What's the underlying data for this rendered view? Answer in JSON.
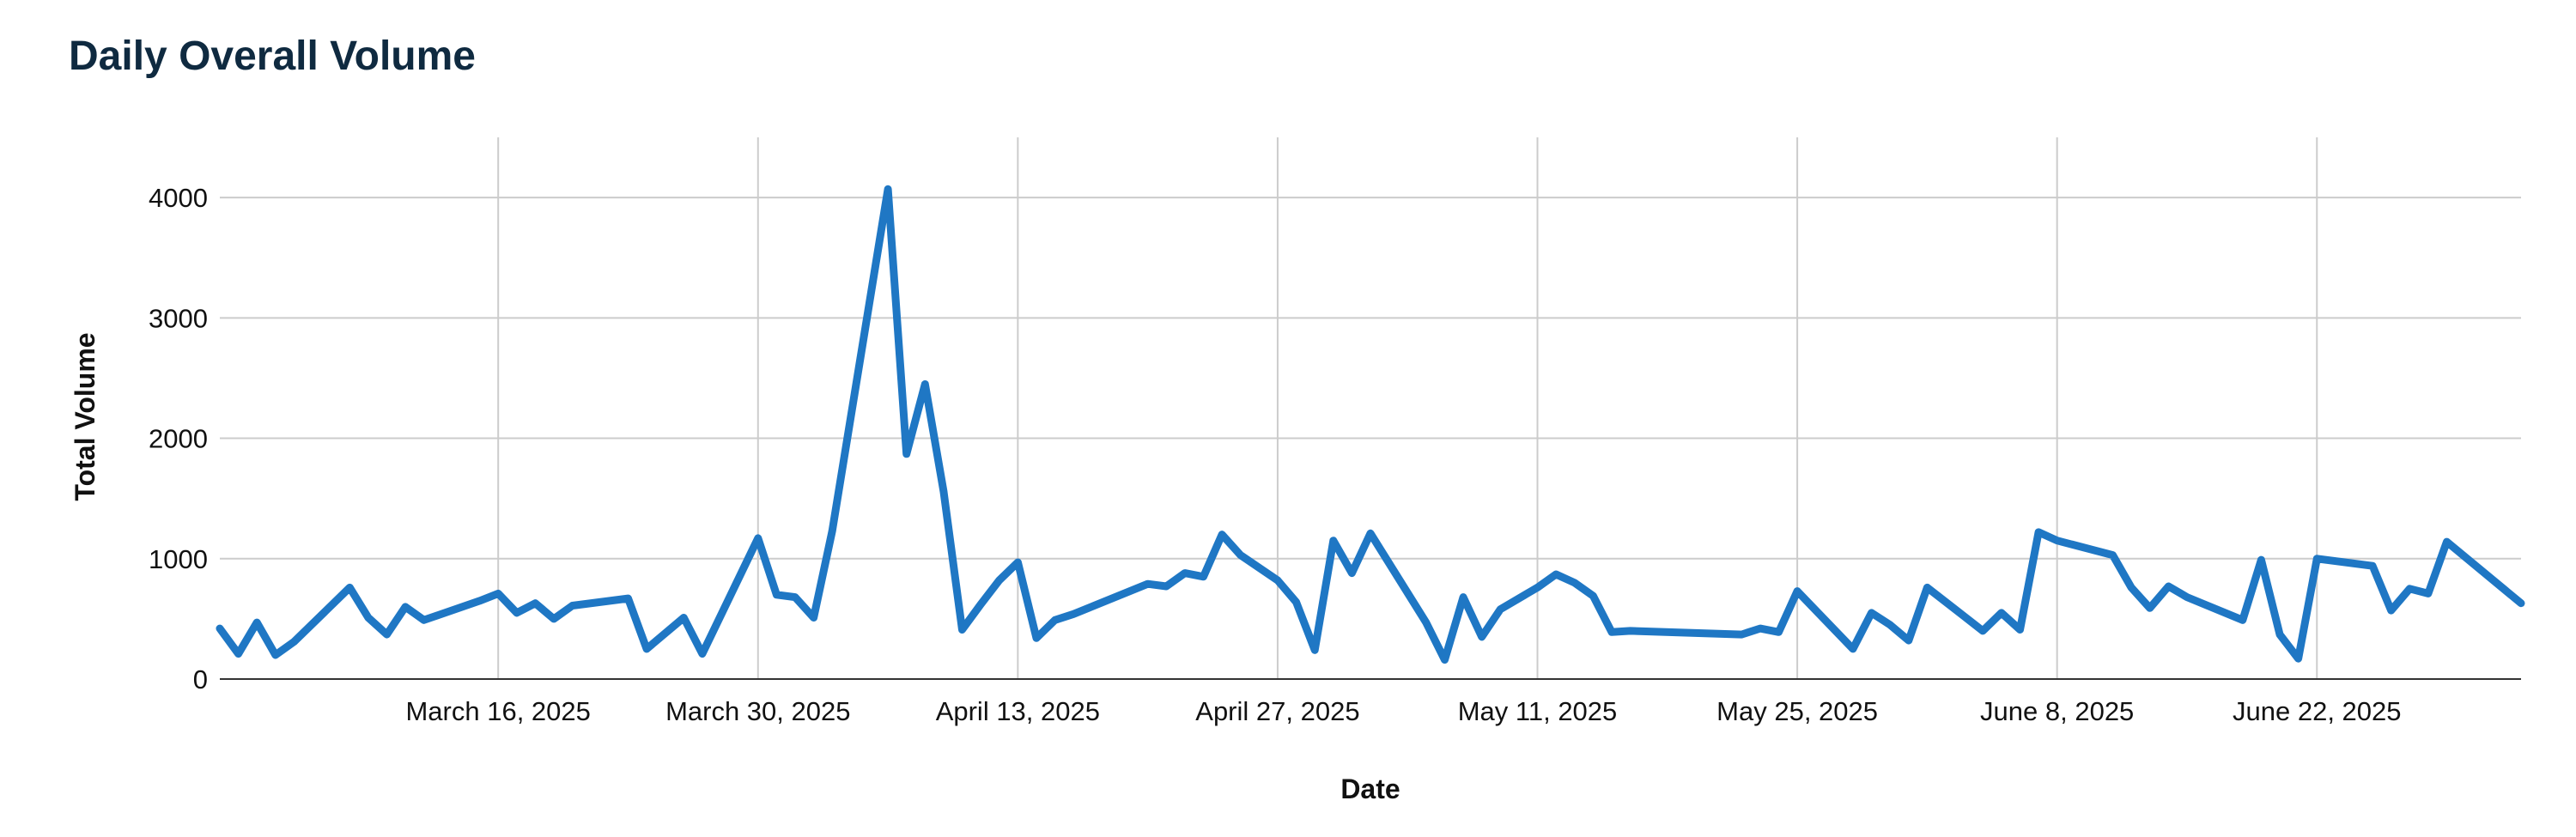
{
  "chart_data": {
    "type": "line",
    "title": "Daily Overall Volume",
    "xlabel": "Date",
    "ylabel": "Total Volume",
    "ylim": [
      0,
      4500
    ],
    "yticks": [
      0,
      1000,
      2000,
      3000,
      4000
    ],
    "xlim": [
      "2025-03-01",
      "2025-07-03"
    ],
    "xticks": [
      {
        "date": "2025-03-16",
        "label": "March 16, 2025"
      },
      {
        "date": "2025-03-30",
        "label": "March 30, 2025"
      },
      {
        "date": "2025-04-13",
        "label": "April 13, 2025"
      },
      {
        "date": "2025-04-27",
        "label": "April 27, 2025"
      },
      {
        "date": "2025-05-11",
        "label": "May 11, 2025"
      },
      {
        "date": "2025-05-25",
        "label": "May 25, 2025"
      },
      {
        "date": "2025-06-08",
        "label": "June 8, 2025"
      },
      {
        "date": "2025-06-22",
        "label": "June 22, 2025"
      }
    ],
    "grid": true,
    "color": "#1f77c4",
    "series": [
      {
        "name": "",
        "points": [
          [
            "2025-03-01",
            420
          ],
          [
            "2025-03-02",
            210
          ],
          [
            "2025-03-03",
            470
          ],
          [
            "2025-03-04",
            200
          ],
          [
            "2025-03-05",
            310
          ],
          [
            "2025-03-08",
            760
          ],
          [
            "2025-03-09",
            510
          ],
          [
            "2025-03-10",
            370
          ],
          [
            "2025-03-11",
            600
          ],
          [
            "2025-03-12",
            490
          ],
          [
            "2025-03-15",
            650
          ],
          [
            "2025-03-16",
            710
          ],
          [
            "2025-03-17",
            550
          ],
          [
            "2025-03-18",
            630
          ],
          [
            "2025-03-19",
            500
          ],
          [
            "2025-03-20",
            610
          ],
          [
            "2025-03-23",
            670
          ],
          [
            "2025-03-24",
            250
          ],
          [
            "2025-03-26",
            510
          ],
          [
            "2025-03-27",
            210
          ],
          [
            "2025-03-30",
            1170
          ],
          [
            "2025-03-31",
            700
          ],
          [
            "2025-04-01",
            680
          ],
          [
            "2025-04-02",
            510
          ],
          [
            "2025-04-03",
            1230
          ],
          [
            "2025-04-06",
            4070
          ],
          [
            "2025-04-07",
            1870
          ],
          [
            "2025-04-08",
            2450
          ],
          [
            "2025-04-09",
            1560
          ],
          [
            "2025-04-10",
            410
          ],
          [
            "2025-04-11",
            620
          ],
          [
            "2025-04-12",
            820
          ],
          [
            "2025-04-13",
            970
          ],
          [
            "2025-04-14",
            340
          ],
          [
            "2025-04-15",
            490
          ],
          [
            "2025-04-16",
            540
          ],
          [
            "2025-04-20",
            790
          ],
          [
            "2025-04-21",
            770
          ],
          [
            "2025-04-22",
            880
          ],
          [
            "2025-04-23",
            850
          ],
          [
            "2025-04-24",
            1200
          ],
          [
            "2025-04-25",
            1030
          ],
          [
            "2025-04-27",
            820
          ],
          [
            "2025-04-28",
            640
          ],
          [
            "2025-04-29",
            240
          ],
          [
            "2025-04-30",
            1150
          ],
          [
            "2025-05-01",
            880
          ],
          [
            "2025-05-02",
            1210
          ],
          [
            "2025-05-05",
            470
          ],
          [
            "2025-05-06",
            160
          ],
          [
            "2025-05-07",
            680
          ],
          [
            "2025-05-08",
            350
          ],
          [
            "2025-05-09",
            580
          ],
          [
            "2025-05-11",
            760
          ],
          [
            "2025-05-12",
            870
          ],
          [
            "2025-05-13",
            800
          ],
          [
            "2025-05-14",
            690
          ],
          [
            "2025-05-15",
            390
          ],
          [
            "2025-05-16",
            400
          ],
          [
            "2025-05-22",
            370
          ],
          [
            "2025-05-23",
            420
          ],
          [
            "2025-05-24",
            390
          ],
          [
            "2025-05-25",
            730
          ],
          [
            "2025-05-28",
            250
          ],
          [
            "2025-05-29",
            550
          ],
          [
            "2025-05-30",
            450
          ],
          [
            "2025-05-31",
            320
          ],
          [
            "2025-06-01",
            760
          ],
          [
            "2025-06-04",
            400
          ],
          [
            "2025-06-05",
            550
          ],
          [
            "2025-06-06",
            410
          ],
          [
            "2025-06-07",
            1220
          ],
          [
            "2025-06-08",
            1150
          ],
          [
            "2025-06-11",
            1030
          ],
          [
            "2025-06-12",
            760
          ],
          [
            "2025-06-13",
            590
          ],
          [
            "2025-06-14",
            770
          ],
          [
            "2025-06-15",
            680
          ],
          [
            "2025-06-18",
            490
          ],
          [
            "2025-06-19",
            990
          ],
          [
            "2025-06-20",
            370
          ],
          [
            "2025-06-21",
            170
          ],
          [
            "2025-06-22",
            1000
          ],
          [
            "2025-06-25",
            940
          ],
          [
            "2025-06-26",
            570
          ],
          [
            "2025-06-27",
            750
          ],
          [
            "2025-06-28",
            710
          ],
          [
            "2025-06-29",
            1140
          ],
          [
            "2025-07-03",
            630
          ]
        ]
      }
    ]
  }
}
